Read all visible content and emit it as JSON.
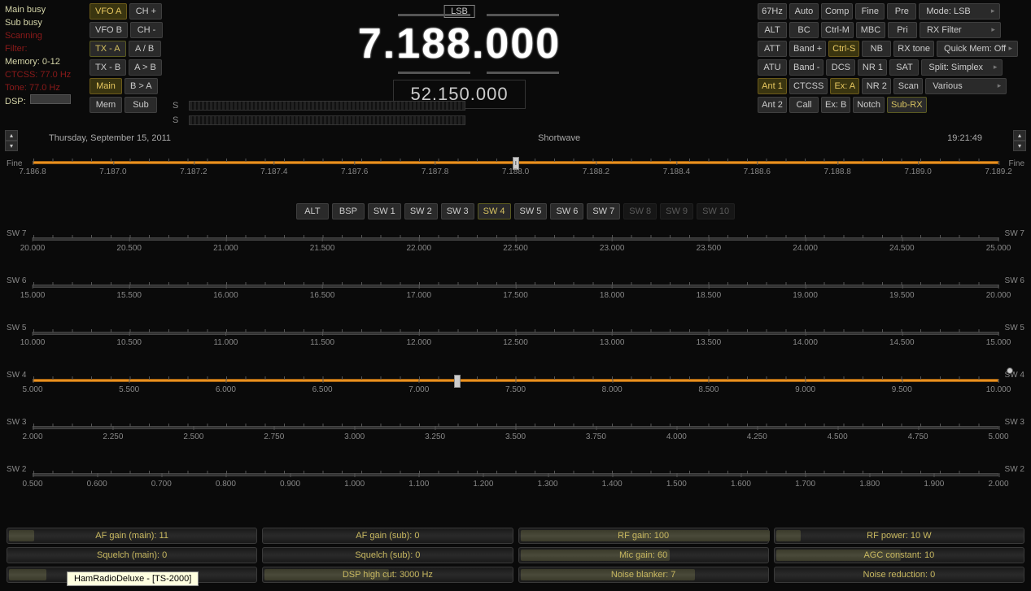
{
  "status": {
    "main_busy": "Main busy",
    "sub_busy": "Sub busy",
    "scanning": "Scanning",
    "filter": "Filter:",
    "memory": "Memory: 0-12",
    "ctcss": "CTCSS: 77.0 Hz",
    "tone": "Tone: 77.0 Hz",
    "dsp": "DSP:"
  },
  "left_buttons": [
    [
      "VFO A",
      "CH +"
    ],
    [
      "VFO B",
      "CH -"
    ],
    [
      "TX - A",
      "A / B"
    ],
    [
      "TX - B",
      "A > B"
    ],
    [
      "Main",
      "B > A"
    ],
    [
      "Mem",
      "Sub"
    ]
  ],
  "left_active": {
    "VFO A": "y",
    "TX - A": "b",
    "Main": "y"
  },
  "mode_badge": "LSB",
  "main_freq_parts": [
    "7.",
    "188",
    ".",
    "000"
  ],
  "sub_freq": "52.150.000",
  "right_rows": [
    {
      "cells": [
        "67Hz",
        "Auto",
        "Comp",
        "Fine",
        "Pre"
      ],
      "wide": "Mode: LSB"
    },
    {
      "cells": [
        "ALT",
        "BC",
        "Ctrl-M",
        "MBC",
        "Pri"
      ],
      "wide": "RX Filter"
    },
    {
      "cells": [
        "ATT",
        "Band +",
        "Ctrl-S",
        "NB",
        "RX tone"
      ],
      "wide": "Quick Mem: Off"
    },
    {
      "cells": [
        "ATU",
        "Band -",
        "DCS",
        "NR 1",
        "SAT"
      ],
      "wide": "Split: Simplex"
    },
    {
      "cells": [
        "Ant 1",
        "CTCSS",
        "Ex: A",
        "NR 2",
        "Scan"
      ],
      "wide": "Various"
    },
    {
      "cells": [
        "Ant 2",
        "Call",
        "Ex: B",
        "Notch",
        "Sub-RX"
      ],
      "wide": ""
    }
  ],
  "right_active": {
    "Ctrl-S": "y",
    "Ant 1": "y",
    "Ex: A": "y",
    "Sub-RX": "b"
  },
  "info": {
    "date": "Thursday, September 15, 2011",
    "band": "Shortwave",
    "time": "19:21:49"
  },
  "fine": {
    "label": "Fine",
    "ticks": [
      "7.186.8",
      "7.187.0",
      "7.187.2",
      "7.187.4",
      "7.187.6",
      "7.187.8",
      "7.188.0",
      "7.188.2",
      "7.188.4",
      "7.188.6",
      "7.188.8",
      "7.189.0",
      "7.189.2"
    ],
    "marker_pct": 50
  },
  "band_buttons": [
    "ALT",
    "BSP",
    "SW 1",
    "SW 2",
    "SW 3",
    "SW 4",
    "SW 5",
    "SW 6",
    "SW 7",
    "SW 8",
    "SW 9",
    "SW 10"
  ],
  "band_active": "SW 4",
  "band_disabled": [
    "SW 8",
    "SW 9",
    "SW 10"
  ],
  "bands": [
    {
      "name": "SW 7",
      "active": false,
      "ticks": [
        "20.000",
        "20.500",
        "21.000",
        "21.500",
        "22.000",
        "22.500",
        "23.000",
        "23.500",
        "24.000",
        "24.500",
        "25.000"
      ]
    },
    {
      "name": "SW 6",
      "active": false,
      "ticks": [
        "15.000",
        "15.500",
        "16.000",
        "16.500",
        "17.000",
        "17.500",
        "18.000",
        "18.500",
        "19.000",
        "19.500",
        "20.000"
      ]
    },
    {
      "name": "SW 5",
      "active": false,
      "ticks": [
        "10.000",
        "10.500",
        "11.000",
        "11.500",
        "12.000",
        "12.500",
        "13.000",
        "13.500",
        "14.000",
        "14.500",
        "15.000"
      ]
    },
    {
      "name": "SW 4",
      "active": true,
      "marker_pct": 44,
      "ticks": [
        "5.000",
        "5.500",
        "6.000",
        "6.500",
        "7.000",
        "7.500",
        "8.000",
        "8.500",
        "9.000",
        "9.500",
        "10.000"
      ]
    },
    {
      "name": "SW 3",
      "active": false,
      "ticks": [
        "2.000",
        "2.250",
        "2.500",
        "2.750",
        "3.000",
        "3.250",
        "3.500",
        "3.750",
        "4.000",
        "4.250",
        "4.500",
        "4.750",
        "5.000"
      ]
    },
    {
      "name": "SW 2",
      "active": false,
      "ticks": [
        "0.500",
        "0.600",
        "0.700",
        "0.800",
        "0.900",
        "1.000",
        "1.100",
        "1.200",
        "1.300",
        "1.400",
        "1.500",
        "1.600",
        "1.700",
        "1.800",
        "1.900",
        "2.000"
      ]
    }
  ],
  "sliders": [
    [
      {
        "l": "AF gain (main): 11",
        "p": 10
      },
      {
        "l": "AF gain (sub): 0",
        "p": 0
      },
      {
        "l": "RF gain: 100",
        "p": 100
      },
      {
        "l": "RF power: 10 W",
        "p": 10
      }
    ],
    [
      {
        "l": "Squelch (main): 0",
        "p": 0
      },
      {
        "l": "Squelch (sub): 0",
        "p": 0
      },
      {
        "l": "Mic gain: 60",
        "p": 60
      },
      {
        "l": "AGC constant: 10",
        "p": 50
      }
    ],
    [
      {
        "l": "",
        "p": 15
      },
      {
        "l": "DSP high cut: 3000 Hz",
        "p": 50
      },
      {
        "l": "Noise blanker: 7",
        "p": 70
      },
      {
        "l": "Noise reduction: 0",
        "p": 0
      }
    ]
  ],
  "tooltip": "HamRadioDeluxe - [TS-2000]",
  "colors": {
    "bg": "#0a0a0a",
    "accent": "#e89020",
    "text": "#d4d4a8"
  }
}
